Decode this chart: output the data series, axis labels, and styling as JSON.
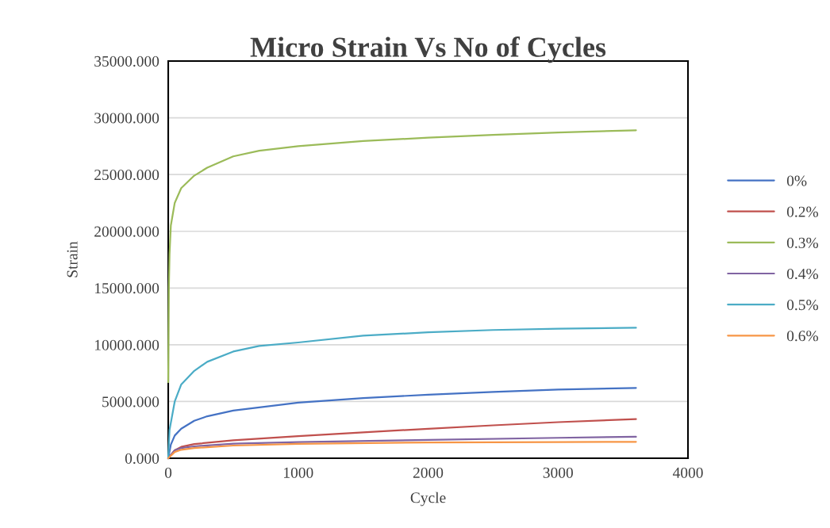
{
  "chart_data": {
    "type": "line",
    "title": "Micro Strain Vs No of Cycles",
    "xlabel": "Cycle",
    "ylabel": "Strain",
    "xlim": [
      0,
      4000
    ],
    "xticks": [
      0,
      1000,
      2000,
      3000,
      4000
    ],
    "ylim": [
      0,
      35000
    ],
    "yticks": [
      {
        "value": 0,
        "label": "0.000"
      },
      {
        "value": 5000,
        "label": "5000.000"
      },
      {
        "value": 10000,
        "label": "10000.000"
      },
      {
        "value": 15000,
        "label": "15000.000"
      },
      {
        "value": 20000,
        "label": "20000.000"
      },
      {
        "value": 25000,
        "label": "25000.000"
      },
      {
        "value": 30000,
        "label": "30000.000"
      },
      {
        "value": 35000,
        "label": "35000.000"
      }
    ],
    "grid": "y",
    "legend": "right",
    "marker": "none",
    "line_style": "solid",
    "series": [
      {
        "name": "0%",
        "color": "#4472c4",
        "x": [
          0,
          20,
          50,
          100,
          200,
          300,
          500,
          1000,
          1500,
          2000,
          2500,
          3000,
          3600
        ],
        "values": [
          0,
          1200,
          2000,
          2600,
          3300,
          3700,
          4200,
          4900,
          5300,
          5600,
          5850,
          6050,
          6200
        ]
      },
      {
        "name": "0.2%",
        "color": "#c0504d",
        "x": [
          0,
          50,
          100,
          200,
          500,
          1000,
          1500,
          2000,
          2500,
          3000,
          3600
        ],
        "values": [
          0,
          700,
          1000,
          1250,
          1580,
          1950,
          2280,
          2600,
          2900,
          3180,
          3450
        ]
      },
      {
        "name": "0.3%",
        "color": "#9bbb59",
        "x": [
          0,
          5,
          10,
          20,
          50,
          100,
          200,
          300,
          500,
          700,
          1000,
          1500,
          2000,
          2500,
          3000,
          3600
        ],
        "values": [
          6700,
          15000,
          18000,
          20500,
          22500,
          23800,
          24900,
          25600,
          26600,
          27100,
          27500,
          27950,
          28250,
          28500,
          28700,
          28900
        ]
      },
      {
        "name": "0.4%",
        "color": "#8064a2",
        "x": [
          0,
          50,
          100,
          200,
          500,
          1000,
          2000,
          3000,
          3600
        ],
        "values": [
          0,
          700,
          900,
          1050,
          1280,
          1420,
          1620,
          1800,
          1890
        ]
      },
      {
        "name": "0.5%",
        "color": "#4bacc6",
        "x": [
          0,
          10,
          50,
          100,
          200,
          300,
          500,
          700,
          1000,
          1500,
          2000,
          2500,
          3000,
          3600
        ],
        "values": [
          0,
          2500,
          5000,
          6500,
          7700,
          8500,
          9400,
          9900,
          10200,
          10800,
          11100,
          11300,
          11420,
          11500
        ]
      },
      {
        "name": "0.6%",
        "color": "#f79646",
        "x": [
          0,
          50,
          100,
          200,
          500,
          1000,
          2000,
          3000,
          3600
        ],
        "values": [
          0,
          550,
          750,
          900,
          1120,
          1260,
          1390,
          1430,
          1450
        ]
      }
    ]
  }
}
